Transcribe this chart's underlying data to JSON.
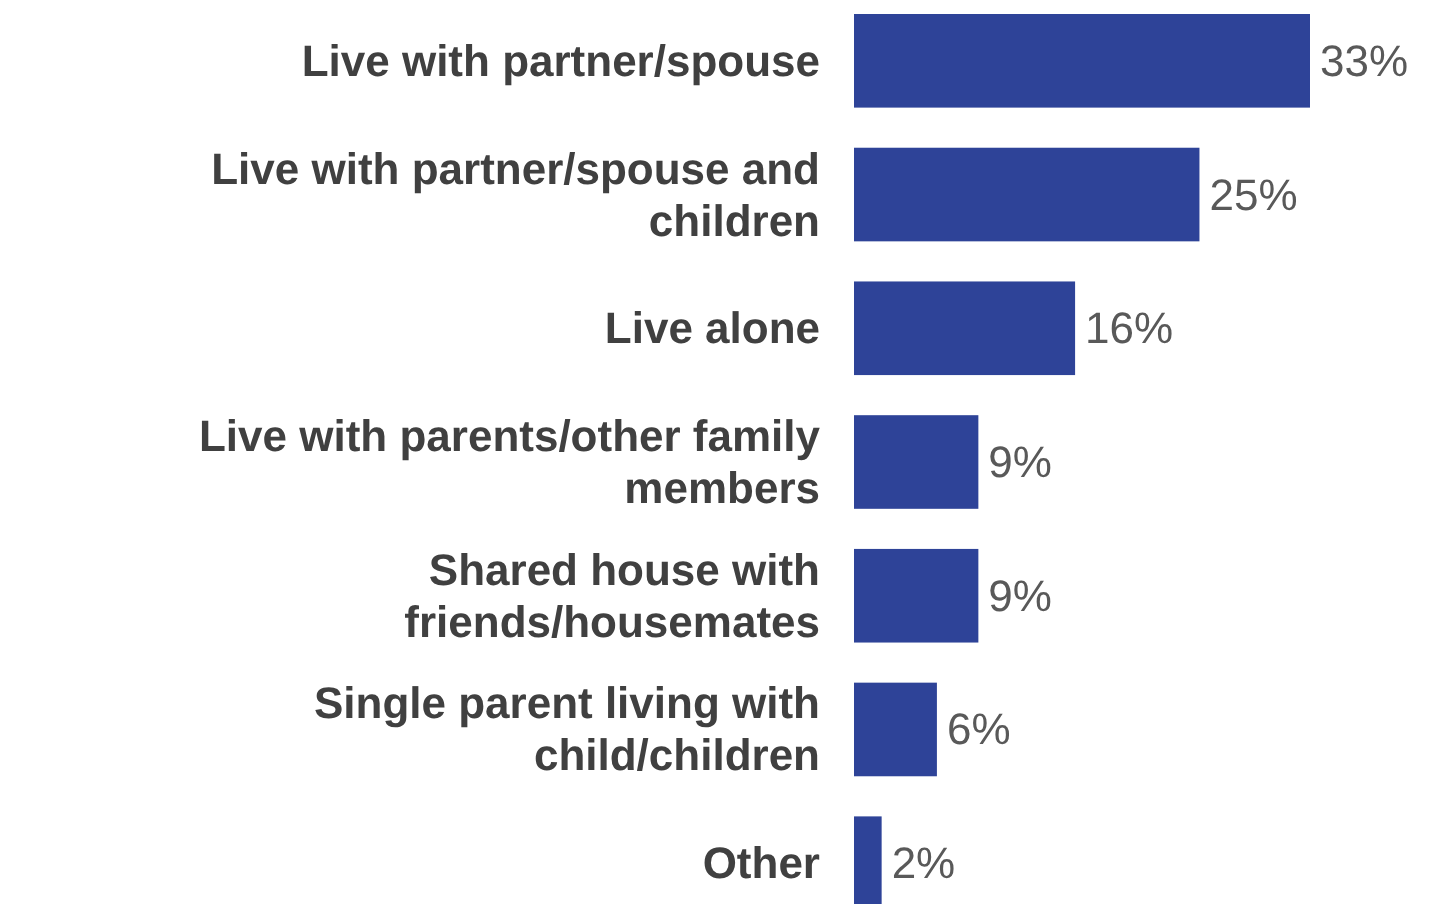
{
  "chart_data": {
    "type": "bar",
    "orientation": "horizontal",
    "categories": [
      "Live with partner/spouse",
      "Live with partner/spouse and children",
      "Live alone",
      "Live with parents/other family members",
      "Shared house with friends/housemates",
      "Single parent living with child/children",
      "Other"
    ],
    "values": [
      33,
      25,
      16,
      9,
      9,
      6,
      2
    ],
    "color": "#2e4398",
    "value_labels": [
      "33%",
      "25%",
      "16%",
      "9%",
      "9%",
      "6%",
      "2%"
    ]
  }
}
